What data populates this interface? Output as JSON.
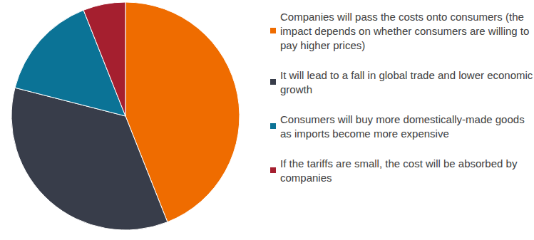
{
  "chart_data": {
    "type": "pie",
    "categories": [
      "Companies will pass the costs onto consumers (the impact depends on whether consumers are willing to pay higher prices)",
      "It will lead to a fall in global trade and lower economic growth",
      "Consumers will buy more domestically-made goods as imports become more expensive",
      "If the tariffs are small, the cost will be absorbed by companies"
    ],
    "values": [
      44,
      35,
      15,
      6
    ],
    "colors": [
      "#ef6c00",
      "#383d4a",
      "#0b7396",
      "#a51f2f"
    ],
    "legend": "right"
  }
}
